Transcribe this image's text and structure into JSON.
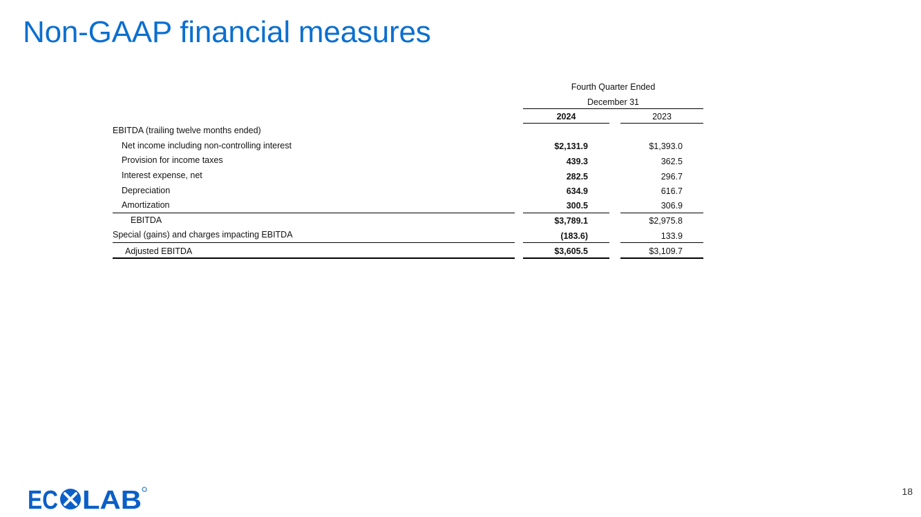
{
  "title": "Non-GAAP financial measures",
  "table": {
    "header_line1": "Fourth Quarter Ended",
    "header_line2": "December 31",
    "columns": [
      "2024",
      "2023"
    ],
    "section_label": "EBITDA (trailing twelve months ended)",
    "rows": [
      {
        "label": "Net income including non-controlling interest",
        "v2024": "$2,131.9",
        "v2023": "$1,393.0"
      },
      {
        "label": "Provision for income taxes",
        "v2024": "439.3",
        "v2023": "362.5"
      },
      {
        "label": "Interest expense, net",
        "v2024": "282.5",
        "v2023": "296.7"
      },
      {
        "label": "Depreciation",
        "v2024": "634.9",
        "v2023": "616.7"
      },
      {
        "label": "Amortization",
        "v2024": "300.5",
        "v2023": "306.9"
      },
      {
        "label": "EBITDA",
        "v2024": "$3,789.1",
        "v2023": "$2,975.8"
      },
      {
        "label": "Special (gains) and charges impacting EBITDA",
        "v2024": "(183.6)",
        "v2023": "133.9"
      },
      {
        "label": "Adjusted EBITDA",
        "v2024": "$3,605.5",
        "v2023": "$3,109.7"
      }
    ]
  },
  "logo": {
    "text": "ECOLAB",
    "color": "#0b5fc8"
  },
  "page_number": "18",
  "colors": {
    "title": "#0b6fd0"
  }
}
